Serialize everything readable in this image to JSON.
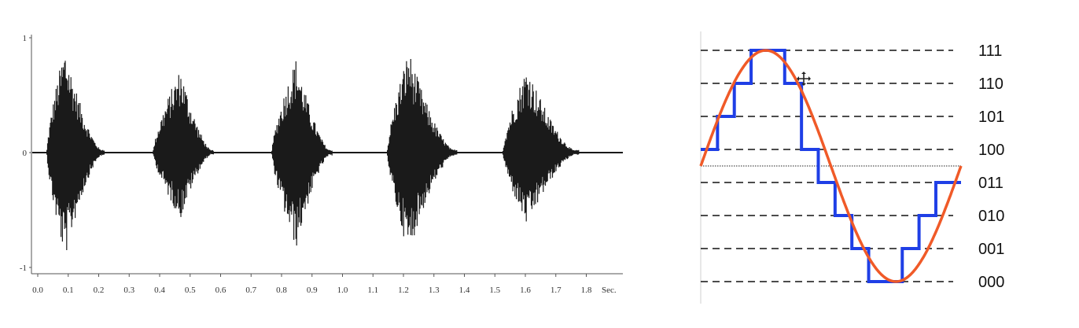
{
  "chart_data": [
    {
      "type": "line",
      "title": "",
      "xlabel": "",
      "ylabel": "",
      "x_unit_label": "Sec.",
      "xlim": [
        0.0,
        1.9
      ],
      "ylim": [
        -1,
        1
      ],
      "x_ticks": [
        "0.0",
        "0.1",
        "0.2",
        "0.3",
        "0.4",
        "0.5",
        "0.6",
        "0.7",
        "0.8",
        "0.9",
        "1.0",
        "1.1",
        "1.2",
        "1.3",
        "1.4",
        "1.5",
        "1.6",
        "1.7",
        "1.8"
      ],
      "y_ticks": [
        "1",
        "0",
        "-1"
      ],
      "series": [
        {
          "color": "#1a1a1a",
          "bursts": [
            {
              "start": 0.03,
              "peak": 0.09,
              "end": 0.22,
              "pos": 0.93,
              "neg": -0.93
            },
            {
              "start": 0.38,
              "peak": 0.47,
              "end": 0.58,
              "pos": 0.74,
              "neg": -0.58
            },
            {
              "start": 0.77,
              "peak": 0.85,
              "end": 0.97,
              "pos": 0.83,
              "neg": -0.84
            },
            {
              "start": 1.15,
              "peak": 1.22,
              "end": 1.38,
              "pos": 0.9,
              "neg": -0.88
            },
            {
              "start": 1.53,
              "peak": 1.61,
              "end": 1.78,
              "pos": 0.76,
              "neg": -0.65
            }
          ]
        }
      ],
      "grid": false
    },
    {
      "type": "line",
      "title": "",
      "xlabel": "",
      "ylabel": "",
      "levels": [
        "111",
        "110",
        "101",
        "100",
        "011",
        "010",
        "001",
        "000"
      ],
      "grid": true,
      "series": [
        {
          "kind": "analog-signal",
          "color": "#f05a28",
          "waveform": "sine",
          "cycles": 1,
          "amplitude": 3.5,
          "offset": 3.5
        },
        {
          "kind": "quantized-signal",
          "color": "#1f3fe6",
          "samples": 16,
          "values": [
            "100",
            "101",
            "110",
            "111",
            "111",
            "110",
            "100",
            "011",
            "010",
            "001",
            "000",
            "000",
            "001",
            "010",
            "011",
            "011"
          ]
        }
      ]
    }
  ]
}
